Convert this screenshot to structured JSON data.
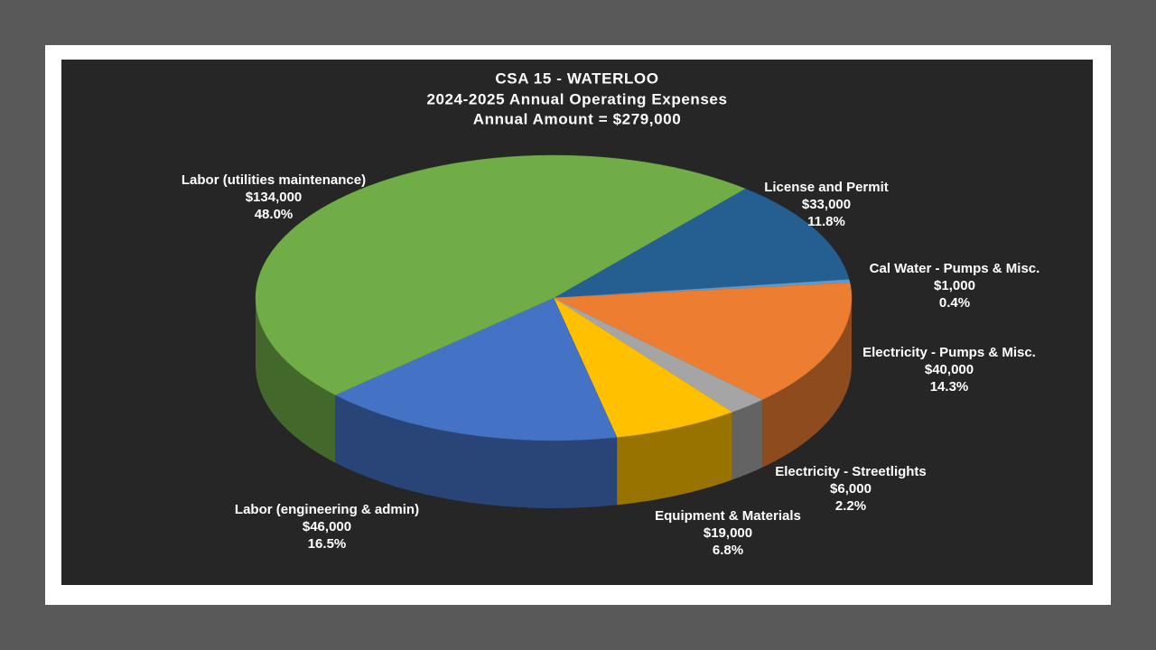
{
  "chart_data": {
    "type": "pie3d",
    "title": "CSA 15 - WATERLOO",
    "subtitle": "2024-2025 Annual Operating Expenses",
    "subtitle2": "Annual Amount = $279,000",
    "categories": [
      "License and Permit",
      "Cal Water - Pumps & Misc.",
      "Electricity - Pumps & Misc.",
      "Electricity - Streetlights",
      "Equipment & Materials",
      "Labor (engineering & admin)",
      "Labor (utilities maintenance)"
    ],
    "values": [
      33000,
      1000,
      40000,
      6000,
      19000,
      46000,
      134000
    ],
    "value_labels": [
      "$33,000",
      "$1,000",
      "$40,000",
      "$6,000",
      "$19,000",
      "$46,000",
      "$134,000"
    ],
    "percentages": [
      11.8,
      0.4,
      14.3,
      2.2,
      6.8,
      16.5,
      48.0
    ],
    "percentage_labels": [
      "11.8%",
      "0.4%",
      "14.3%",
      "2.2%",
      "6.8%",
      "16.5%",
      "48.0%"
    ],
    "colors": [
      "#255e91",
      "#5b9bd5",
      "#ed7d31",
      "#a5a5a5",
      "#ffc000",
      "#4472c4",
      "#70ad47"
    ]
  }
}
